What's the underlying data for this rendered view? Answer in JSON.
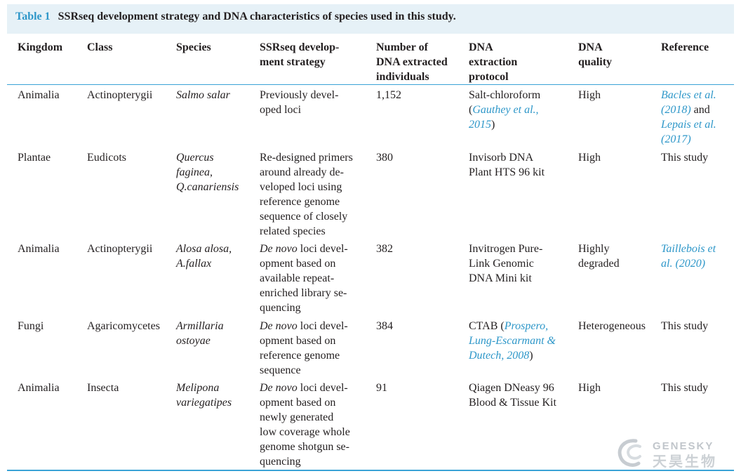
{
  "caption": {
    "label": "Table 1",
    "text": "SSRseq development strategy and DNA characteristics of species used in this study."
  },
  "headers": {
    "kingdom": "Kingdom",
    "class": "Class",
    "species": "Species",
    "strategy": "SSRseq develop-\nment strategy",
    "number": "Number of\nDNA extracted\nindividuals",
    "protocol": "DNA\nextraction\nprotocol",
    "quality": "DNA\nquality",
    "reference": "Reference"
  },
  "rows": [
    {
      "kingdom": "Animalia",
      "class": "Actinopterygii",
      "species": "Salmo salar",
      "strategy_it": "",
      "strategy": "Previously devel-\noped loci",
      "number": "1,152",
      "protocol": "Salt-chloroform",
      "protocol_ref": "Gauthey et al.,\n2015",
      "protocol_open": "(",
      "protocol_close": ")",
      "quality": "High",
      "ref_a": "Bacles et al.\n(2018)",
      "ref_mid": " and",
      "ref_b": "Lepais et al.\n(2017)"
    },
    {
      "kingdom": "Plantae",
      "class": "Eudicots",
      "species": "Quercus\nfaginea,\nQ.canariensis",
      "strategy": "Re-designed primers\naround already de-\nveloped loci using\nreference genome\nsequence of closely\nrelated species",
      "number": "380",
      "protocol": "Invisorb DNA\nPlant HTS 96 kit",
      "quality": "High",
      "reference": "This study"
    },
    {
      "kingdom": "Animalia",
      "class": "Actinopterygii",
      "species": "Alosa alosa,\nA.fallax",
      "strategy_it": "De novo",
      "strategy": " loci devel-\nopment based on\navailable repeat-\nenriched library se-\nquencing",
      "number": "382",
      "protocol": "Invitrogen Pure-\nLink Genomic\nDNA Mini kit",
      "quality": "Highly\ndegraded",
      "ref_a": "Taillebois et\nal. (2020)"
    },
    {
      "kingdom": "Fungi",
      "class": "Agaricomycetes",
      "species": "Armillaria\nostoyae",
      "strategy_it": "De novo",
      "strategy": " loci devel-\nopment based on\nreference genome\nsequence",
      "number": "384",
      "protocol": "CTAB",
      "protocol_ref": "Prospero,\nLung-Escarmant &\nDutech, 2008",
      "protocol_open": " (",
      "protocol_close": ")",
      "quality": "Heterogeneous",
      "reference": "This study"
    },
    {
      "kingdom": "Animalia",
      "class": "Insecta",
      "species": "Melipona\nvariegatipes",
      "strategy_it": "De novo",
      "strategy": " loci devel-\nopment based on\nnewly generated\nlow coverage whole\ngenome shotgun se-\nquencing",
      "number": "91",
      "protocol": "Qiagen DNeasy 96\nBlood & Tissue Kit",
      "quality": "High",
      "reference": "This study"
    }
  ],
  "watermark": {
    "en": "GENESKY",
    "cn": "天昊生物"
  }
}
